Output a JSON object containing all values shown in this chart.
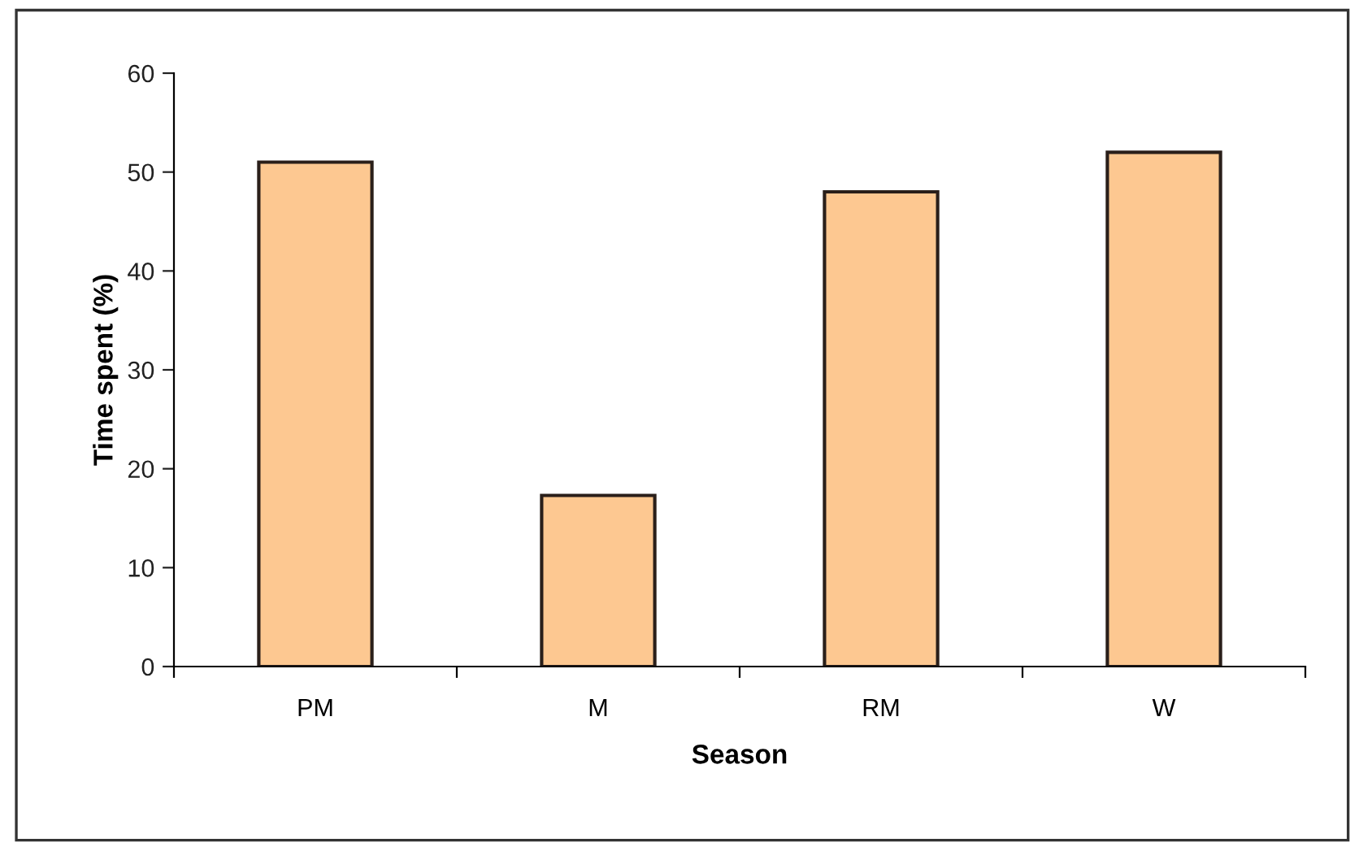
{
  "chart_data": {
    "type": "bar",
    "xlabel": "Season",
    "ylabel": "Time spent (%)",
    "categories": [
      "PM",
      "M",
      "RM",
      "W"
    ],
    "values": [
      51,
      17.3,
      48,
      52
    ],
    "color": "#fdc891",
    "ylim": [
      0,
      60
    ],
    "yticks": [
      0,
      10,
      20,
      30,
      40,
      50,
      60
    ],
    "grid": false
  }
}
